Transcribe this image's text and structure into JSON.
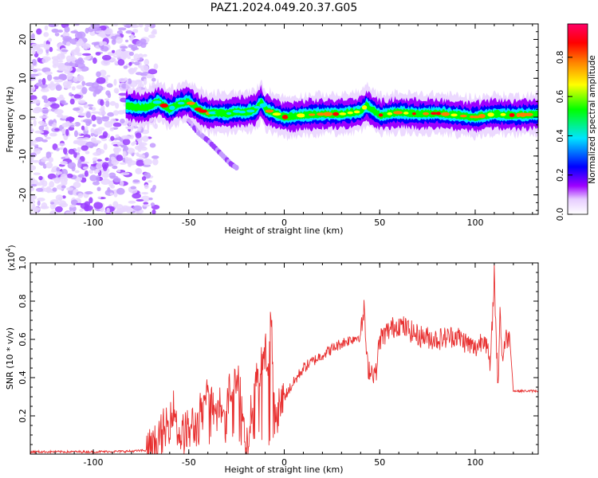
{
  "figure": {
    "title": "PAZ1.2024.049.20.37.G05"
  },
  "chart_data": [
    {
      "type": "heatmap",
      "xlabel": "Height of straight line (km)",
      "ylabel": "Frequency (Hz)",
      "xlim": [
        -133,
        133
      ],
      "ylim": [
        -25,
        24
      ],
      "xticks": [
        -100,
        -50,
        0,
        50,
        100
      ],
      "yticks": [
        -20,
        -10,
        0,
        10,
        20
      ],
      "colorbar": {
        "label": "Normalized spectral amplitude",
        "range": [
          0.0,
          0.97
        ],
        "ticks": [
          0.0,
          0.2,
          0.4,
          0.6,
          0.8
        ],
        "colormap": [
          "#ffffff",
          "#e6ccff",
          "#9d00ff",
          "#0000ff",
          "#00e5ff",
          "#00ff00",
          "#ffff00",
          "#ff8000",
          "#ff0000",
          "#ff0066"
        ]
      },
      "noise_region_x": [
        -133,
        -72
      ],
      "ridge": {
        "x": [
          -83,
          -78,
          -72,
          -66,
          -60,
          -55,
          -50,
          -45,
          -40,
          -35,
          -30,
          -25,
          -20,
          -15,
          -12,
          -10,
          -5,
          0,
          10,
          20,
          30,
          40,
          43,
          50,
          60,
          70,
          80,
          90,
          100,
          110,
          120,
          133
        ],
        "frequency": [
          3,
          2.5,
          2.5,
          4,
          2,
          3.5,
          4,
          2,
          1,
          1.2,
          0.8,
          1.5,
          1.2,
          2,
          4,
          2,
          1,
          0,
          0.5,
          0.8,
          0.8,
          1.5,
          3,
          0.5,
          1.2,
          0.8,
          1,
          0.5,
          0,
          0.8,
          0.5,
          0.8
        ]
      },
      "branch": {
        "x": [
          -50,
          -45,
          -40,
          -36,
          -32,
          -28,
          -25
        ],
        "frequency": [
          -1,
          -4,
          -6,
          -8,
          -10,
          -12,
          -13
        ]
      }
    },
    {
      "type": "line",
      "xlabel": "Height of straight line (km)",
      "ylabel": "SNR (10 * v/v)",
      "y_multiplier_label": "(x10",
      "y_multiplier_exp": "4",
      "xlim": [
        -133,
        133
      ],
      "ylim": [
        0,
        1.0
      ],
      "xticks": [
        -100,
        -50,
        0,
        50,
        100
      ],
      "yticks": [
        0.2,
        0.4,
        0.6,
        0.8,
        1.0
      ],
      "line_color": "#e83030",
      "series": [
        {
          "x": [
            -133,
            -100,
            -80,
            -72,
            -66,
            -62,
            -60,
            -58,
            -55,
            -50,
            -45,
            -40,
            -35,
            -30,
            -25,
            -20,
            -15,
            -10,
            -8,
            -7,
            -5,
            -2,
            0,
            10,
            20,
            30,
            40,
            41,
            42,
            43,
            44,
            48,
            50,
            55,
            60,
            70,
            80,
            90,
            100,
            105,
            108,
            110,
            111,
            112,
            113,
            114,
            116,
            118,
            120,
            125,
            133
          ],
          "values": [
            0.012,
            0.012,
            0.015,
            0.02,
            0.05,
            0.12,
            0.18,
            0.25,
            0.1,
            0.12,
            0.15,
            0.3,
            0.25,
            0.3,
            0.4,
            0.05,
            0.35,
            0.5,
            0.42,
            0.79,
            0.15,
            0.25,
            0.3,
            0.45,
            0.52,
            0.58,
            0.62,
            0.7,
            0.77,
            0.5,
            0.45,
            0.42,
            0.6,
            0.65,
            0.68,
            0.62,
            0.6,
            0.62,
            0.55,
            0.62,
            0.45,
            0.95,
            0.6,
            0.35,
            0.78,
            0.5,
            0.6,
            0.62,
            0.33,
            0.33,
            0.33
          ]
        }
      ]
    }
  ]
}
